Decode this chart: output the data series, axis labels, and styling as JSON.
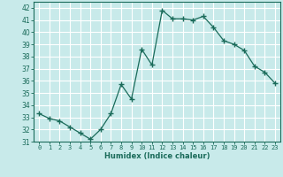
{
  "x": [
    0,
    1,
    2,
    3,
    4,
    5,
    6,
    7,
    8,
    9,
    10,
    11,
    12,
    13,
    14,
    15,
    16,
    17,
    18,
    19,
    20,
    21,
    22,
    23
  ],
  "y": [
    33.3,
    32.9,
    32.7,
    32.2,
    31.7,
    31.2,
    32.0,
    33.3,
    35.7,
    34.5,
    38.6,
    37.3,
    41.8,
    41.1,
    41.1,
    41.0,
    41.3,
    40.4,
    39.3,
    39.0,
    38.5,
    37.2,
    36.7,
    35.8
  ],
  "xlabel": "Humidex (Indice chaleur)",
  "ylabel": "",
  "xlim": [
    -0.5,
    23.5
  ],
  "ylim": [
    31,
    42.5
  ],
  "yticks": [
    31,
    32,
    33,
    34,
    35,
    36,
    37,
    38,
    39,
    40,
    41,
    42
  ],
  "xticks": [
    0,
    1,
    2,
    3,
    4,
    5,
    6,
    7,
    8,
    9,
    10,
    11,
    12,
    13,
    14,
    15,
    16,
    17,
    18,
    19,
    20,
    21,
    22,
    23
  ],
  "line_color": "#1a6b5a",
  "marker_color": "#1a6b5a",
  "bg_color": "#c8eaea",
  "grid_color": "#ffffff",
  "label_color": "#1a6b5a",
  "tick_color": "#1a6b5a"
}
